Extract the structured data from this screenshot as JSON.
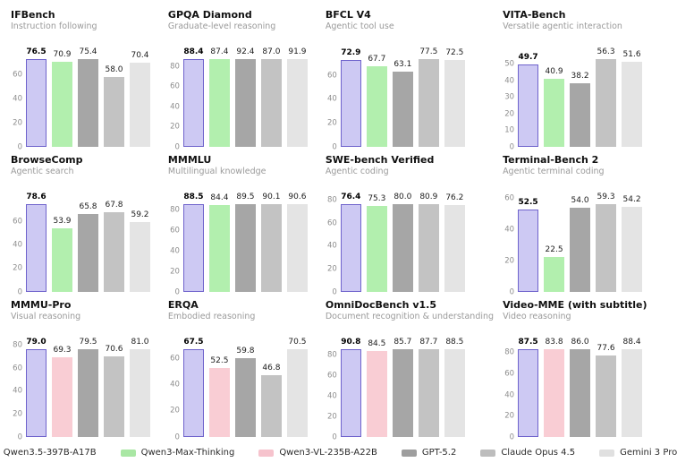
{
  "palette": {
    "qwen35": {
      "fill": "#cdc9f3",
      "stroke": "#6f63cc",
      "legend": "#b7b1ea"
    },
    "qwen3max": {
      "fill": "#b2efae",
      "stroke": "none",
      "legend": "#a9e7a4"
    },
    "qwen3vl": {
      "fill": "#f9cdd4",
      "stroke": "none",
      "legend": "#f6c3cd"
    },
    "gpt52": {
      "fill": "#a6a6a6",
      "stroke": "none",
      "legend": "#9e9e9e"
    },
    "opus45": {
      "fill": "#c3c3c3",
      "stroke": "none",
      "legend": "#bdbdbd"
    },
    "gemini3": {
      "fill": "#e4e4e4",
      "stroke": "none",
      "legend": "#e0e0e0"
    }
  },
  "legend": {
    "items": [
      {
        "key": "qwen35",
        "label": "Qwen3.5-397B-A17B"
      },
      {
        "key": "qwen3max",
        "label": "Qwen3-Max-Thinking"
      },
      {
        "key": "qwen3vl",
        "label": "Qwen3-VL-235B-A22B"
      },
      {
        "key": "gpt52",
        "label": "GPT-5.2"
      },
      {
        "key": "opus45",
        "label": "Claude Opus 4.5"
      },
      {
        "key": "gemini3",
        "label": "Gemini 3 Pro"
      }
    ]
  },
  "chart_data": [
    {
      "type": "bar",
      "title": "IFBench",
      "subtitle": "Instruction following",
      "categories": [
        "Qwen3.5-397B-A17B",
        "Qwen3-Max-Thinking",
        "GPT-5.2",
        "Claude Opus 4.5",
        "Gemini 3 Pro"
      ],
      "series_keys": [
        "qwen35",
        "qwen3max",
        "gpt52",
        "opus45",
        "gemini3"
      ],
      "values": [
        76.5,
        70.9,
        75.4,
        58.0,
        70.4
      ],
      "yticks": [
        0,
        20,
        40,
        60
      ],
      "ylim": [
        0,
        82
      ],
      "highlight_index": 0,
      "grid": false
    },
    {
      "type": "bar",
      "title": "GPQA Diamond",
      "subtitle": "Graduate-level reasoning",
      "categories": [
        "Qwen3.5-397B-A17B",
        "Qwen3-Max-Thinking",
        "GPT-5.2",
        "Claude Opus 4.5",
        "Gemini 3 Pro"
      ],
      "series_keys": [
        "qwen35",
        "qwen3max",
        "gpt52",
        "opus45",
        "gemini3"
      ],
      "values": [
        88.4,
        87.4,
        92.4,
        87.0,
        91.9
      ],
      "yticks": [
        0,
        20,
        40,
        60,
        80
      ],
      "ylim": [
        0,
        98
      ],
      "highlight_index": 0,
      "grid": false
    },
    {
      "type": "bar",
      "title": "BFCL V4",
      "subtitle": "Agentic tool use",
      "categories": [
        "Qwen3.5-397B-A17B",
        "Qwen3-Max-Thinking",
        "GPT-5.2",
        "Claude Opus 4.5",
        "Gemini 3 Pro"
      ],
      "series_keys": [
        "qwen35",
        "qwen3max",
        "gpt52",
        "opus45",
        "gemini3"
      ],
      "values": [
        72.9,
        67.7,
        63.1,
        77.5,
        72.5
      ],
      "yticks": [
        0,
        20,
        40,
        60
      ],
      "ylim": [
        0,
        82.5
      ],
      "highlight_index": 0,
      "grid": false
    },
    {
      "type": "bar",
      "title": "VITA-Bench",
      "subtitle": "Versatile agentic interaction",
      "categories": [
        "Qwen3.5-397B-A17B",
        "Qwen3-Max-Thinking",
        "GPT-5.2",
        "Claude Opus 4.5",
        "Gemini 3 Pro"
      ],
      "series_keys": [
        "qwen35",
        "qwen3max",
        "gpt52",
        "opus45",
        "gemini3"
      ],
      "values": [
        49.7,
        40.9,
        38.2,
        56.3,
        51.6
      ],
      "yticks": [
        0,
        10,
        20,
        30,
        40,
        50
      ],
      "ylim": [
        0,
        59.5
      ],
      "highlight_index": 0,
      "grid": false
    },
    {
      "type": "bar",
      "title": "BrowseComp",
      "subtitle": "Agentic search",
      "categories": [
        "Qwen3.5-397B-A17B",
        "Qwen3-Max-Thinking",
        "GPT-5.2",
        "Claude Opus 4.5",
        "Gemini 3 Pro"
      ],
      "series_keys": [
        "qwen35",
        "qwen3max",
        "gpt52",
        "opus45",
        "gemini3"
      ],
      "values": [
        78.6,
        53.9,
        65.8,
        67.8,
        59.2
      ],
      "yticks": [
        0,
        20,
        40,
        60
      ],
      "ylim": [
        0,
        83.5
      ],
      "highlight_index": 0,
      "grid": false
    },
    {
      "type": "bar",
      "title": "MMMLU",
      "subtitle": "Multilingual knowledge",
      "categories": [
        "Qwen3.5-397B-A17B",
        "Qwen3-Max-Thinking",
        "GPT-5.2",
        "Claude Opus 4.5",
        "Gemini 3 Pro"
      ],
      "series_keys": [
        "qwen35",
        "qwen3max",
        "gpt52",
        "opus45",
        "gemini3"
      ],
      "values": [
        88.5,
        84.4,
        89.5,
        90.1,
        90.6
      ],
      "yticks": [
        0,
        20,
        40,
        60,
        80
      ],
      "ylim": [
        0,
        96
      ],
      "highlight_index": 0,
      "grid": false
    },
    {
      "type": "bar",
      "title": "SWE-bench Verified",
      "subtitle": "Agentic coding",
      "categories": [
        "Qwen3.5-397B-A17B",
        "Qwen3-Max-Thinking",
        "GPT-5.2",
        "Claude Opus 4.5",
        "Gemini 3 Pro"
      ],
      "series_keys": [
        "qwen35",
        "qwen3max",
        "gpt52",
        "opus45",
        "gemini3"
      ],
      "values": [
        76.4,
        75.3,
        80.0,
        80.9,
        76.2
      ],
      "yticks": [
        0,
        20,
        40,
        60,
        80
      ],
      "ylim": [
        0,
        86
      ],
      "highlight_index": 0,
      "grid": false
    },
    {
      "type": "bar",
      "title": "Terminal-Bench 2",
      "subtitle": "Agentic terminal coding",
      "categories": [
        "Qwen3.5-397B-A17B",
        "Qwen3-Max-Thinking",
        "GPT-5.2",
        "Claude Opus 4.5",
        "Gemini 3 Pro"
      ],
      "series_keys": [
        "qwen35",
        "qwen3max",
        "gpt52",
        "opus45",
        "gemini3"
      ],
      "values": [
        52.5,
        22.5,
        54.0,
        59.3,
        54.2
      ],
      "yticks": [
        0,
        20,
        40,
        60
      ],
      "ylim": [
        0,
        63
      ],
      "highlight_index": 0,
      "grid": false
    },
    {
      "type": "bar",
      "title": "MMMU-Pro",
      "subtitle": "Visual reasoning",
      "categories": [
        "Qwen3.5-397B-A17B",
        "Qwen3-VL-235B-A22B",
        "GPT-5.2",
        "Claude Opus 4.5",
        "Gemini 3 Pro"
      ],
      "series_keys": [
        "qwen35",
        "qwen3vl",
        "gpt52",
        "opus45",
        "gemini3"
      ],
      "values": [
        79.0,
        69.3,
        79.5,
        70.6,
        81.0
      ],
      "yticks": [
        0,
        20,
        40,
        60,
        80
      ],
      "ylim": [
        0,
        86
      ],
      "highlight_index": 0,
      "grid": false
    },
    {
      "type": "bar",
      "title": "ERQA",
      "subtitle": "Embodied reasoning",
      "categories": [
        "Qwen3.5-397B-A17B",
        "Qwen3-VL-235B-A22B",
        "GPT-5.2",
        "Claude Opus 4.5",
        "Gemini 3 Pro"
      ],
      "series_keys": [
        "qwen35",
        "qwen3vl",
        "gpt52",
        "opus45",
        "gemini3"
      ],
      "values": [
        67.5,
        52.5,
        59.8,
        46.8,
        70.5
      ],
      "yticks": [
        0,
        20,
        40,
        60
      ],
      "ylim": [
        0,
        75
      ],
      "highlight_index": 0,
      "grid": false
    },
    {
      "type": "bar",
      "title": "OmniDocBench v1.5",
      "subtitle": "Document recognition & understanding",
      "categories": [
        "Qwen3.5-397B-A17B",
        "Qwen3-VL-235B-A22B",
        "GPT-5.2",
        "Claude Opus 4.5",
        "Gemini 3 Pro"
      ],
      "series_keys": [
        "qwen35",
        "qwen3vl",
        "gpt52",
        "opus45",
        "gemini3"
      ],
      "values": [
        90.8,
        84.5,
        85.7,
        87.7,
        88.5
      ],
      "yticks": [
        0,
        20,
        40,
        60,
        80
      ],
      "ylim": [
        0,
        96.5
      ],
      "highlight_index": 0,
      "grid": false
    },
    {
      "type": "bar",
      "title": "Video-MME (with subtitle)",
      "subtitle": "Video reasoning",
      "categories": [
        "Qwen3.5-397B-A17B",
        "Qwen3-VL-235B-A22B",
        "GPT-5.2",
        "Claude Opus 4.5",
        "Gemini 3 Pro"
      ],
      "series_keys": [
        "qwen35",
        "qwen3vl",
        "gpt52",
        "opus45",
        "gemini3"
      ],
      "values": [
        87.5,
        83.8,
        86.0,
        77.6,
        88.4
      ],
      "yticks": [
        0,
        20,
        40,
        60,
        80
      ],
      "ylim": [
        0,
        93.5
      ],
      "highlight_index": 0,
      "grid": false
    }
  ]
}
